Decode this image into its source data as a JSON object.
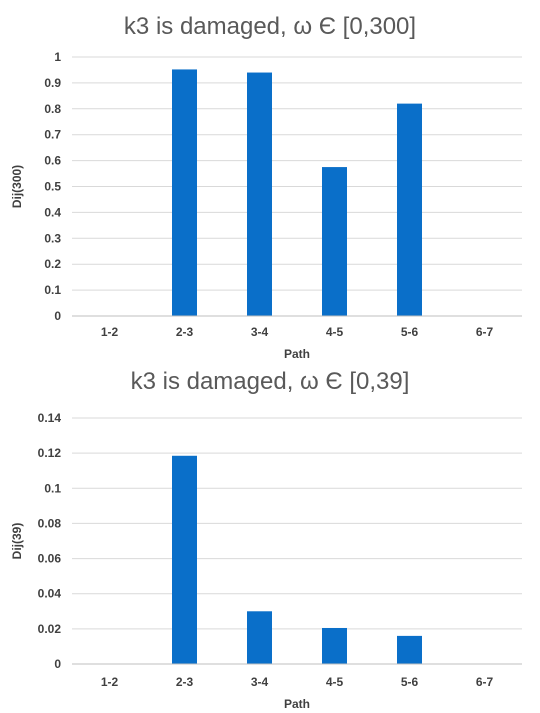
{
  "chart_data": [
    {
      "type": "bar",
      "title": "k3 is damaged, ω Є [0,300]",
      "xlabel": "Path",
      "ylabel": "Dij(300)",
      "categories": [
        "1-2",
        "2-3",
        "3-4",
        "4-5",
        "5-6",
        "6-7"
      ],
      "values": [
        0,
        0.952,
        0.94,
        0.575,
        0.82,
        0
      ],
      "ylim": [
        0,
        1
      ],
      "yticks": [
        0,
        0.1,
        0.2,
        0.3,
        0.4,
        0.5,
        0.6,
        0.7,
        0.8,
        0.9,
        1
      ],
      "ytick_labels": [
        "0",
        "0.1",
        "0.2",
        "0.3",
        "0.4",
        "0.5",
        "0.6",
        "0.7",
        "0.8",
        "0.9",
        "1"
      ],
      "grid": true,
      "bar_color": "#0a6fc9"
    },
    {
      "type": "bar",
      "title": "k3 is damaged, ω Є [0,39]",
      "xlabel": "Path",
      "ylabel": "Dij(39)",
      "categories": [
        "1-2",
        "2-3",
        "3-4",
        "4-5",
        "5-6",
        "6-7"
      ],
      "values": [
        0,
        0.1185,
        0.03,
        0.0205,
        0.016,
        0
      ],
      "ylim": [
        0,
        0.14
      ],
      "yticks": [
        0,
        0.02,
        0.04,
        0.06,
        0.08,
        0.1,
        0.12,
        0.14
      ],
      "ytick_labels": [
        "0",
        "0.02",
        "0.04",
        "0.06",
        "0.08",
        "0.1",
        "0.12",
        "0.14"
      ],
      "grid": true,
      "bar_color": "#0a6fc9"
    }
  ]
}
